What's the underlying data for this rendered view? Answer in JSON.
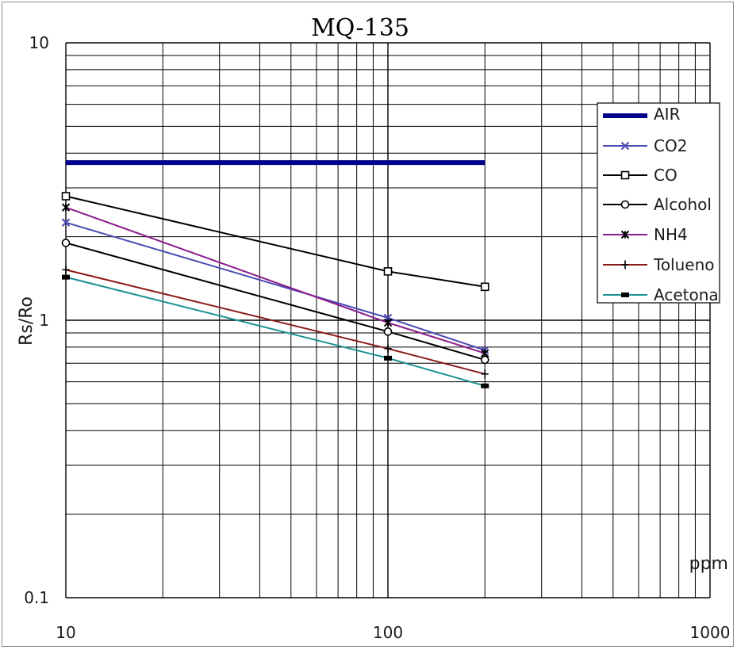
{
  "chart_data": {
    "type": "line",
    "title": "MQ-135",
    "xlabel": "ppm",
    "ylabel": "Rs/Ro",
    "x_scale": "log",
    "y_scale": "log",
    "xlim": [
      10,
      1000
    ],
    "ylim": [
      0.1,
      10
    ],
    "x_ticks": [
      "10",
      "100",
      "1000"
    ],
    "y_ticks": [
      "10",
      "1",
      "0.1"
    ],
    "grid": true,
    "legend_position": "top-right",
    "series": [
      {
        "name": "AIR",
        "color": "#00008b",
        "marker": "none",
        "width": 6,
        "x": [
          10,
          200
        ],
        "y": [
          3.7,
          3.7
        ]
      },
      {
        "name": "CO2",
        "color": "#4b4bb4",
        "marker": "x",
        "x": [
          10,
          100,
          200
        ],
        "y": [
          2.25,
          1.02,
          0.78
        ]
      },
      {
        "name": "CO",
        "color": "#000000",
        "marker": "square",
        "x": [
          10,
          100,
          200
        ],
        "y": [
          2.8,
          1.5,
          1.32
        ]
      },
      {
        "name": "Alcohol",
        "color": "#000000",
        "marker": "circle",
        "x": [
          10,
          100,
          200
        ],
        "y": [
          1.9,
          0.91,
          0.72
        ]
      },
      {
        "name": "NH4",
        "color": "#8b1a8b",
        "marker": "asterisk",
        "x": [
          10,
          100,
          200
        ],
        "y": [
          2.55,
          0.98,
          0.76
        ]
      },
      {
        "name": "Tolueno",
        "color": "#8b1a1a",
        "marker": "plus",
        "x": [
          10,
          100,
          200
        ],
        "y": [
          1.52,
          0.79,
          0.64
        ]
      },
      {
        "name": "Acetona",
        "color": "#1a9090",
        "marker": "bar",
        "x": [
          10,
          100,
          200
        ],
        "y": [
          1.43,
          0.73,
          0.58
        ]
      }
    ]
  }
}
